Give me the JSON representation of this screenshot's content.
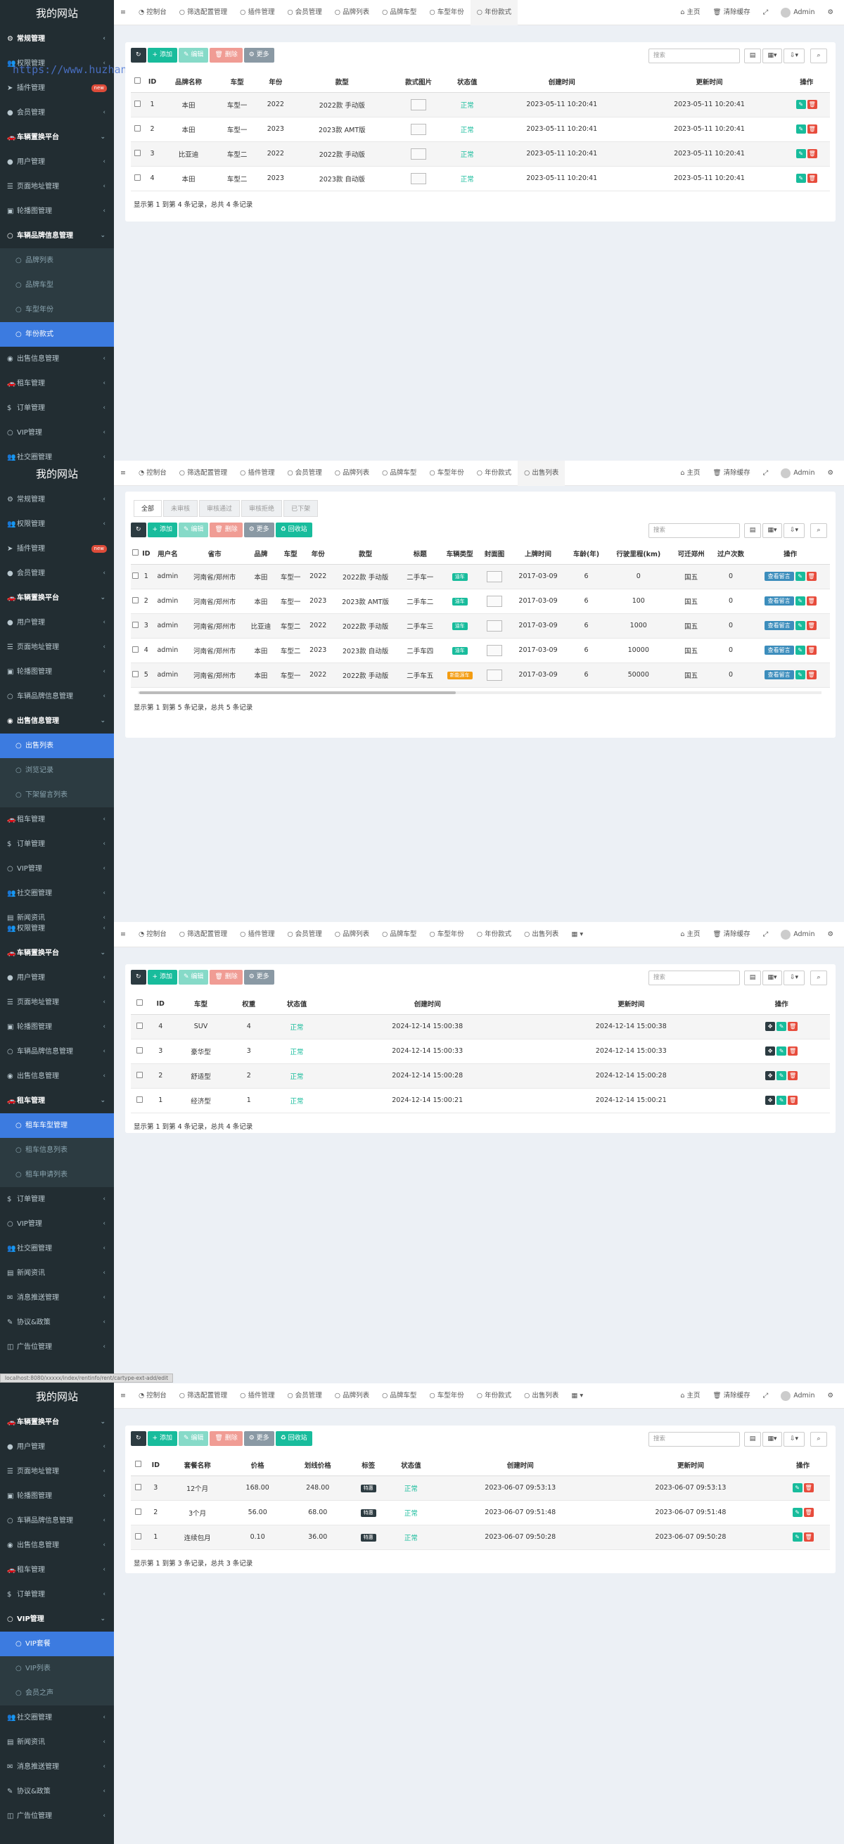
{
  "site_name": "我的网站",
  "watermark": "https://www.huzhan.com/ishop45080",
  "status_url": "localhost:8080/xxxxx/index/rentinfo/rent/cartype-ext-add/edit",
  "top": {
    "home": "主页",
    "clear_cache": "清除缓存",
    "admin": "Admin"
  },
  "buttons": {
    "add": "添加",
    "edit": "编辑",
    "delete": "删除",
    "more": "更多",
    "recycle": "回收站",
    "search_placeholder": "搜索"
  },
  "panels": [
    {
      "sidebar": [
        {
          "label": "常规管理",
          "type": "head-top",
          "icon": "gear-icon"
        },
        {
          "label": "权限管理",
          "type": "item",
          "icon": "users-icon"
        },
        {
          "label": "插件管理",
          "type": "item",
          "icon": "rocket-icon",
          "badge": "new"
        },
        {
          "label": "会员管理",
          "type": "item",
          "icon": "user-icon"
        },
        {
          "label": "车辆置换平台",
          "type": "head",
          "icon": "car-icon"
        },
        {
          "label": "用户管理",
          "type": "item",
          "icon": "user-icon"
        },
        {
          "label": "页面地址管理",
          "type": "item",
          "icon": "list-icon"
        },
        {
          "label": "轮播图管理",
          "type": "item",
          "icon": "image-icon"
        },
        {
          "label": "车辆品牌信息管理",
          "type": "head",
          "icon": "circle-icon"
        },
        {
          "label": "品牌列表",
          "type": "sub"
        },
        {
          "label": "品牌车型",
          "type": "sub"
        },
        {
          "label": "车型年份",
          "type": "sub"
        },
        {
          "label": "年份款式",
          "type": "sub",
          "active": true
        },
        {
          "label": "出售信息管理",
          "type": "item",
          "icon": "eye-icon"
        },
        {
          "label": "租车管理",
          "type": "item",
          "icon": "car-icon"
        },
        {
          "label": "订单管理",
          "type": "item",
          "icon": "dollar-icon"
        },
        {
          "label": "VIP管理",
          "type": "item",
          "icon": "circle-icon"
        },
        {
          "label": "社交圈管理",
          "type": "item",
          "icon": "users-icon"
        }
      ],
      "tabs": [
        "控制台",
        "筛选配置管理",
        "插件管理",
        "会员管理",
        "品牌列表",
        "品牌车型",
        "车型年份",
        "年份款式"
      ],
      "active_tab": 7,
      "columns": [
        "ID",
        "品牌名称",
        "车型",
        "年份",
        "款型",
        "款式图片",
        "状态值",
        "创建时间",
        "更新时间",
        "操作"
      ],
      "rows": [
        [
          "1",
          "本田",
          "车型一",
          "2022",
          "2022款 手动版",
          "",
          "正常",
          "2023-05-11 10:20:41",
          "2023-05-11 10:20:41"
        ],
        [
          "2",
          "本田",
          "车型一",
          "2023",
          "2023款 AMT版",
          "",
          "正常",
          "2023-05-11 10:20:41",
          "2023-05-11 10:20:41"
        ],
        [
          "3",
          "比亚迪",
          "车型二",
          "2022",
          "2022款 手动版",
          "",
          "正常",
          "2023-05-11 10:20:41",
          "2023-05-11 10:20:41"
        ],
        [
          "4",
          "本田",
          "车型二",
          "2023",
          "2023款 自动版",
          "",
          "正常",
          "2023-05-11 10:20:41",
          "2023-05-11 10:20:41"
        ]
      ],
      "footer": "显示第 1 到第 4 条记录，总共 4 条记录"
    },
    {
      "sidebar": [
        {
          "label": "常规管理",
          "type": "item",
          "icon": "gear-icon"
        },
        {
          "label": "权限管理",
          "type": "item",
          "icon": "users-icon"
        },
        {
          "label": "插件管理",
          "type": "item",
          "icon": "rocket-icon",
          "badge": "new"
        },
        {
          "label": "会员管理",
          "type": "item",
          "icon": "user-icon"
        },
        {
          "label": "车辆置换平台",
          "type": "head",
          "icon": "car-icon"
        },
        {
          "label": "用户管理",
          "type": "item",
          "icon": "user-icon"
        },
        {
          "label": "页面地址管理",
          "type": "item",
          "icon": "list-icon"
        },
        {
          "label": "轮播图管理",
          "type": "item",
          "icon": "image-icon"
        },
        {
          "label": "车辆品牌信息管理",
          "type": "item",
          "icon": "circle-icon"
        },
        {
          "label": "出售信息管理",
          "type": "head",
          "icon": "eye-icon"
        },
        {
          "label": "出售列表",
          "type": "sub",
          "active": true
        },
        {
          "label": "浏览记录",
          "type": "sub"
        },
        {
          "label": "下架留言列表",
          "type": "sub"
        },
        {
          "label": "租车管理",
          "type": "item",
          "icon": "car-icon"
        },
        {
          "label": "订单管理",
          "type": "item",
          "icon": "dollar-icon"
        },
        {
          "label": "VIP管理",
          "type": "item",
          "icon": "circle-icon"
        },
        {
          "label": "社交圈管理",
          "type": "item",
          "icon": "users-icon"
        },
        {
          "label": "新闻资讯",
          "type": "item",
          "icon": "news-icon"
        }
      ],
      "tabs": [
        "控制台",
        "筛选配置管理",
        "插件管理",
        "会员管理",
        "品牌列表",
        "品牌车型",
        "车型年份",
        "年份款式",
        "出售列表"
      ],
      "active_tab": 8,
      "status_tabs": [
        "全部",
        "未审核",
        "审核通过",
        "审核拒绝",
        "已下架"
      ],
      "columns": [
        "ID",
        "用户名",
        "省市",
        "品牌",
        "车型",
        "年份",
        "款型",
        "标题",
        "车辆类型",
        "封面图",
        "上牌时间",
        "车龄(年)",
        "行驶里程(km)",
        "可迁郑州",
        "过户次数",
        "操作"
      ],
      "rows": [
        [
          "1",
          "admin",
          "河南省/郑州市",
          "本田",
          "车型一",
          "2022",
          "2022款 手动版",
          "二手车一",
          "油车",
          "",
          "2017-03-09",
          "6",
          "0",
          "国五",
          "0"
        ],
        [
          "2",
          "admin",
          "河南省/郑州市",
          "本田",
          "车型一",
          "2023",
          "2023款 AMT版",
          "二手车二",
          "油车",
          "",
          "2017-03-09",
          "6",
          "100",
          "国五",
          "0"
        ],
        [
          "3",
          "admin",
          "河南省/郑州市",
          "比亚迪",
          "车型二",
          "2022",
          "2022款 手动版",
          "二手车三",
          "油车",
          "",
          "2017-03-09",
          "6",
          "1000",
          "国五",
          "0"
        ],
        [
          "4",
          "admin",
          "河南省/郑州市",
          "本田",
          "车型二",
          "2023",
          "2023款 自动版",
          "二手车四",
          "油车",
          "",
          "2017-03-09",
          "6",
          "10000",
          "国五",
          "0"
        ],
        [
          "5",
          "admin",
          "河南省/郑州市",
          "本田",
          "车型一",
          "2022",
          "2022款 手动版",
          "二手车五",
          "新能源车",
          "",
          "2017-03-09",
          "6",
          "50000",
          "国五",
          "0"
        ]
      ],
      "view_msg": "查看留言",
      "footer": "显示第 1 到第 5 条记录，总共 5 条记录"
    },
    {
      "sidebar": [
        {
          "label": "权限管理",
          "type": "item",
          "icon": "users-icon"
        },
        {
          "label": "车辆置换平台",
          "type": "head",
          "icon": "car-icon"
        },
        {
          "label": "用户管理",
          "type": "item",
          "icon": "user-icon"
        },
        {
          "label": "页面地址管理",
          "type": "item",
          "icon": "list-icon"
        },
        {
          "label": "轮播图管理",
          "type": "item",
          "icon": "image-icon"
        },
        {
          "label": "车辆品牌信息管理",
          "type": "item",
          "icon": "circle-icon"
        },
        {
          "label": "出售信息管理",
          "type": "item",
          "icon": "eye-icon"
        },
        {
          "label": "租车管理",
          "type": "head",
          "icon": "car-icon"
        },
        {
          "label": "租车车型管理",
          "type": "sub",
          "active": true
        },
        {
          "label": "租车信息列表",
          "type": "sub"
        },
        {
          "label": "租车申请列表",
          "type": "sub"
        },
        {
          "label": "订单管理",
          "type": "item",
          "icon": "dollar-icon"
        },
        {
          "label": "VIP管理",
          "type": "item",
          "icon": "circle-icon"
        },
        {
          "label": "社交圈管理",
          "type": "item",
          "icon": "users-icon"
        },
        {
          "label": "新闻资讯",
          "type": "item",
          "icon": "news-icon"
        },
        {
          "label": "消息推送管理",
          "type": "item",
          "icon": "bell-icon"
        },
        {
          "label": "协议&政策",
          "type": "item",
          "icon": "doc-icon"
        },
        {
          "label": "广告位管理",
          "type": "item",
          "icon": "ad-icon"
        }
      ],
      "tabs": [
        "控制台",
        "筛选配置管理",
        "插件管理",
        "会员管理",
        "品牌列表",
        "品牌车型",
        "车型年份",
        "年份款式",
        "出售列表"
      ],
      "active_tab": -1,
      "columns": [
        "ID",
        "车型",
        "权重",
        "状态值",
        "创建时间",
        "更新时间",
        "操作"
      ],
      "rows": [
        [
          "4",
          "SUV",
          "4",
          "正常",
          "2024-12-14 15:00:38",
          "2024-12-14 15:00:38"
        ],
        [
          "3",
          "豪华型",
          "3",
          "正常",
          "2024-12-14 15:00:33",
          "2024-12-14 15:00:33"
        ],
        [
          "2",
          "舒适型",
          "2",
          "正常",
          "2024-12-14 15:00:28",
          "2024-12-14 15:00:28"
        ],
        [
          "1",
          "经济型",
          "1",
          "正常",
          "2024-12-14 15:00:21",
          "2024-12-14 15:00:21"
        ]
      ],
      "footer": "显示第 1 到第 4 条记录，总共 4 条记录"
    },
    {
      "sidebar": [
        {
          "label": "车辆置换平台",
          "type": "head",
          "icon": "car-icon"
        },
        {
          "label": "用户管理",
          "type": "item",
          "icon": "user-icon"
        },
        {
          "label": "页面地址管理",
          "type": "item",
          "icon": "list-icon"
        },
        {
          "label": "轮播图管理",
          "type": "item",
          "icon": "image-icon"
        },
        {
          "label": "车辆品牌信息管理",
          "type": "item",
          "icon": "circle-icon"
        },
        {
          "label": "出售信息管理",
          "type": "item",
          "icon": "eye-icon"
        },
        {
          "label": "租车管理",
          "type": "item",
          "icon": "car-icon"
        },
        {
          "label": "订单管理",
          "type": "item",
          "icon": "dollar-icon"
        },
        {
          "label": "VIP管理",
          "type": "head",
          "icon": "circle-icon"
        },
        {
          "label": "VIP套餐",
          "type": "sub",
          "active": true
        },
        {
          "label": "VIP列表",
          "type": "sub"
        },
        {
          "label": "会员之声",
          "type": "sub"
        },
        {
          "label": "社交圈管理",
          "type": "item",
          "icon": "users-icon"
        },
        {
          "label": "新闻资讯",
          "type": "item",
          "icon": "news-icon"
        },
        {
          "label": "消息推送管理",
          "type": "item",
          "icon": "bell-icon"
        },
        {
          "label": "协议&政策",
          "type": "item",
          "icon": "doc-icon"
        },
        {
          "label": "广告位管理",
          "type": "item",
          "icon": "ad-icon"
        }
      ],
      "tabs": [
        "控制台",
        "筛选配置管理",
        "插件管理",
        "会员管理",
        "品牌列表",
        "品牌车型",
        "车型年份",
        "年份款式",
        "出售列表"
      ],
      "active_tab": -1,
      "columns": [
        "ID",
        "套餐名称",
        "价格",
        "划线价格",
        "标签",
        "状态值",
        "创建时间",
        "更新时间",
        "操作"
      ],
      "rows": [
        [
          "3",
          "12个月",
          "168.00",
          "248.00",
          "特惠",
          "正常",
          "2023-06-07 09:53:13",
          "2023-06-07 09:53:13"
        ],
        [
          "2",
          "3个月",
          "56.00",
          "68.00",
          "特惠",
          "正常",
          "2023-06-07 09:51:48",
          "2023-06-07 09:51:48"
        ],
        [
          "1",
          "连续包月",
          "0.10",
          "36.00",
          "特惠",
          "正常",
          "2023-06-07 09:50:28",
          "2023-06-07 09:50:28"
        ]
      ],
      "footer": "显示第 1 到第 3 条记录，总共 3 条记录"
    }
  ]
}
